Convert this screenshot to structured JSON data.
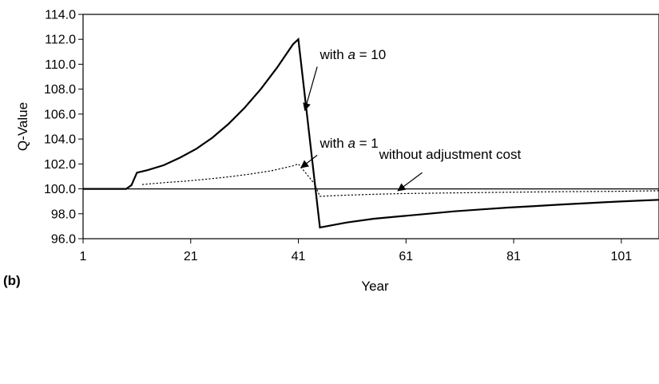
{
  "panel_label": "(b)",
  "chart_data": {
    "type": "line",
    "xlabel": "Year",
    "ylabel": "Q-Value",
    "xlim": [
      1,
      108
    ],
    "ylim": [
      96.0,
      114.0
    ],
    "xticks": [
      1,
      21,
      41,
      61,
      81,
      101
    ],
    "yticks": [
      "96.0",
      "98.0",
      "100.0",
      "102.0",
      "104.0",
      "106.0",
      "108.0",
      "110.0",
      "112.0",
      "114.0"
    ],
    "grid": false,
    "series": [
      {
        "name": "with a = 10",
        "style": "solid-thick",
        "points": [
          [
            1,
            100.0
          ],
          [
            9,
            100.0
          ],
          [
            10,
            100.3
          ],
          [
            11,
            101.3
          ],
          [
            13,
            101.5
          ],
          [
            16,
            101.9
          ],
          [
            19,
            102.5
          ],
          [
            22,
            103.2
          ],
          [
            25,
            104.1
          ],
          [
            28,
            105.2
          ],
          [
            31,
            106.5
          ],
          [
            34,
            108.0
          ],
          [
            37,
            109.7
          ],
          [
            40,
            111.6
          ],
          [
            41,
            112.0
          ],
          [
            45,
            96.9
          ],
          [
            50,
            97.3
          ],
          [
            55,
            97.6
          ],
          [
            60,
            97.8
          ],
          [
            65,
            98.0
          ],
          [
            70,
            98.2
          ],
          [
            75,
            98.35
          ],
          [
            80,
            98.5
          ],
          [
            85,
            98.62
          ],
          [
            90,
            98.75
          ],
          [
            95,
            98.86
          ],
          [
            100,
            98.97
          ],
          [
            105,
            99.07
          ],
          [
            108,
            99.12
          ]
        ]
      },
      {
        "name": "with a = 1",
        "style": "dotted",
        "points": [
          [
            12,
            100.35
          ],
          [
            16,
            100.5
          ],
          [
            20,
            100.62
          ],
          [
            24,
            100.78
          ],
          [
            28,
            100.96
          ],
          [
            32,
            101.18
          ],
          [
            36,
            101.45
          ],
          [
            40,
            101.85
          ],
          [
            41,
            102.0
          ],
          [
            44,
            100.4
          ],
          [
            45,
            99.4
          ],
          [
            50,
            99.5
          ],
          [
            55,
            99.56
          ],
          [
            60,
            99.62
          ],
          [
            70,
            99.68
          ],
          [
            80,
            99.73
          ],
          [
            90,
            99.77
          ],
          [
            100,
            99.8
          ],
          [
            108,
            99.85
          ]
        ]
      },
      {
        "name": "without adjustment cost",
        "style": "solid-thin",
        "points": [
          [
            1,
            100.0
          ],
          [
            108,
            100.0
          ]
        ]
      }
    ],
    "annotations": [
      {
        "label_prefix": "with ",
        "label_var": "a",
        "label_suffix": " = 10",
        "text_at": [
          45,
          110.4
        ],
        "arrow_from": [
          44.5,
          109.8
        ],
        "arrow_to": [
          42.2,
          106.3
        ]
      },
      {
        "label_prefix": "with ",
        "label_var": "a",
        "label_suffix": " = 1",
        "text_at": [
          45,
          103.3
        ],
        "arrow_from": [
          44.5,
          102.7
        ],
        "arrow_to": [
          41.5,
          101.7
        ]
      },
      {
        "label_prefix": "without adjustment cost",
        "label_var": "",
        "label_suffix": "",
        "text_at": [
          56,
          102.4
        ],
        "arrow_from": [
          64,
          101.3
        ],
        "arrow_to": [
          59.5,
          99.85
        ]
      }
    ]
  }
}
